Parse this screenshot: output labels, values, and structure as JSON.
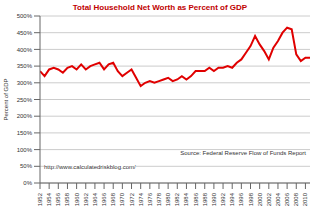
{
  "chart_data": {
    "type": "line",
    "title": "Total Household Net Worth as Percent of GDP",
    "y_label": "Percent of GDP",
    "source": "Source: Federal Reserve Flow of Funds Report",
    "url": "http://www.calculatedriskblog.com/",
    "x": [
      1952,
      1953,
      1954,
      1955,
      1956,
      1957,
      1958,
      1959,
      1960,
      1961,
      1962,
      1963,
      1964,
      1965,
      1966,
      1967,
      1968,
      1969,
      1970,
      1971,
      1972,
      1973,
      1974,
      1975,
      1976,
      1977,
      1978,
      1979,
      1980,
      1981,
      1982,
      1983,
      1984,
      1985,
      1986,
      1987,
      1988,
      1989,
      1990,
      1991,
      1992,
      1993,
      1994,
      1995,
      1996,
      1997,
      1998,
      1999,
      2000,
      2001,
      2002,
      2003,
      2004,
      2005,
      2006,
      2007,
      2008,
      2009,
      2010,
      2011
    ],
    "series": [
      {
        "name": "Total Household Net Worth as Percent of GDP",
        "color": "#e00000",
        "values": [
          335,
          320,
          340,
          345,
          340,
          330,
          345,
          350,
          340,
          355,
          340,
          350,
          355,
          360,
          340,
          355,
          360,
          335,
          320,
          330,
          340,
          315,
          290,
          300,
          305,
          300,
          305,
          310,
          315,
          305,
          310,
          320,
          310,
          320,
          335,
          335,
          335,
          345,
          335,
          345,
          345,
          350,
          345,
          360,
          370,
          390,
          410,
          440,
          415,
          395,
          370,
          405,
          425,
          450,
          465,
          460,
          385,
          365,
          375,
          375
        ]
      }
    ],
    "xlim": [
      1952,
      2011
    ],
    "xticks": [
      1952,
      1954,
      1956,
      1958,
      1960,
      1962,
      1964,
      1966,
      1968,
      1970,
      1972,
      1974,
      1976,
      1978,
      1980,
      1982,
      1984,
      1986,
      1988,
      1990,
      1992,
      1994,
      1996,
      1998,
      2000,
      2002,
      2004,
      2006,
      2008,
      2010
    ],
    "ylim": [
      0,
      500
    ],
    "yticks": [
      {
        "value": 0,
        "label": "0%"
      },
      {
        "value": 50,
        "label": "50%"
      },
      {
        "value": 100,
        "label": "100%"
      },
      {
        "value": 150,
        "label": "150%"
      },
      {
        "value": 200,
        "label": "200%"
      },
      {
        "value": 250,
        "label": "250%"
      },
      {
        "value": 300,
        "label": "300%"
      },
      {
        "value": 350,
        "label": "350%"
      },
      {
        "value": 400,
        "label": "400%"
      },
      {
        "value": 450,
        "label": "450%"
      },
      {
        "value": 500,
        "label": "500%"
      }
    ],
    "grid": true
  }
}
